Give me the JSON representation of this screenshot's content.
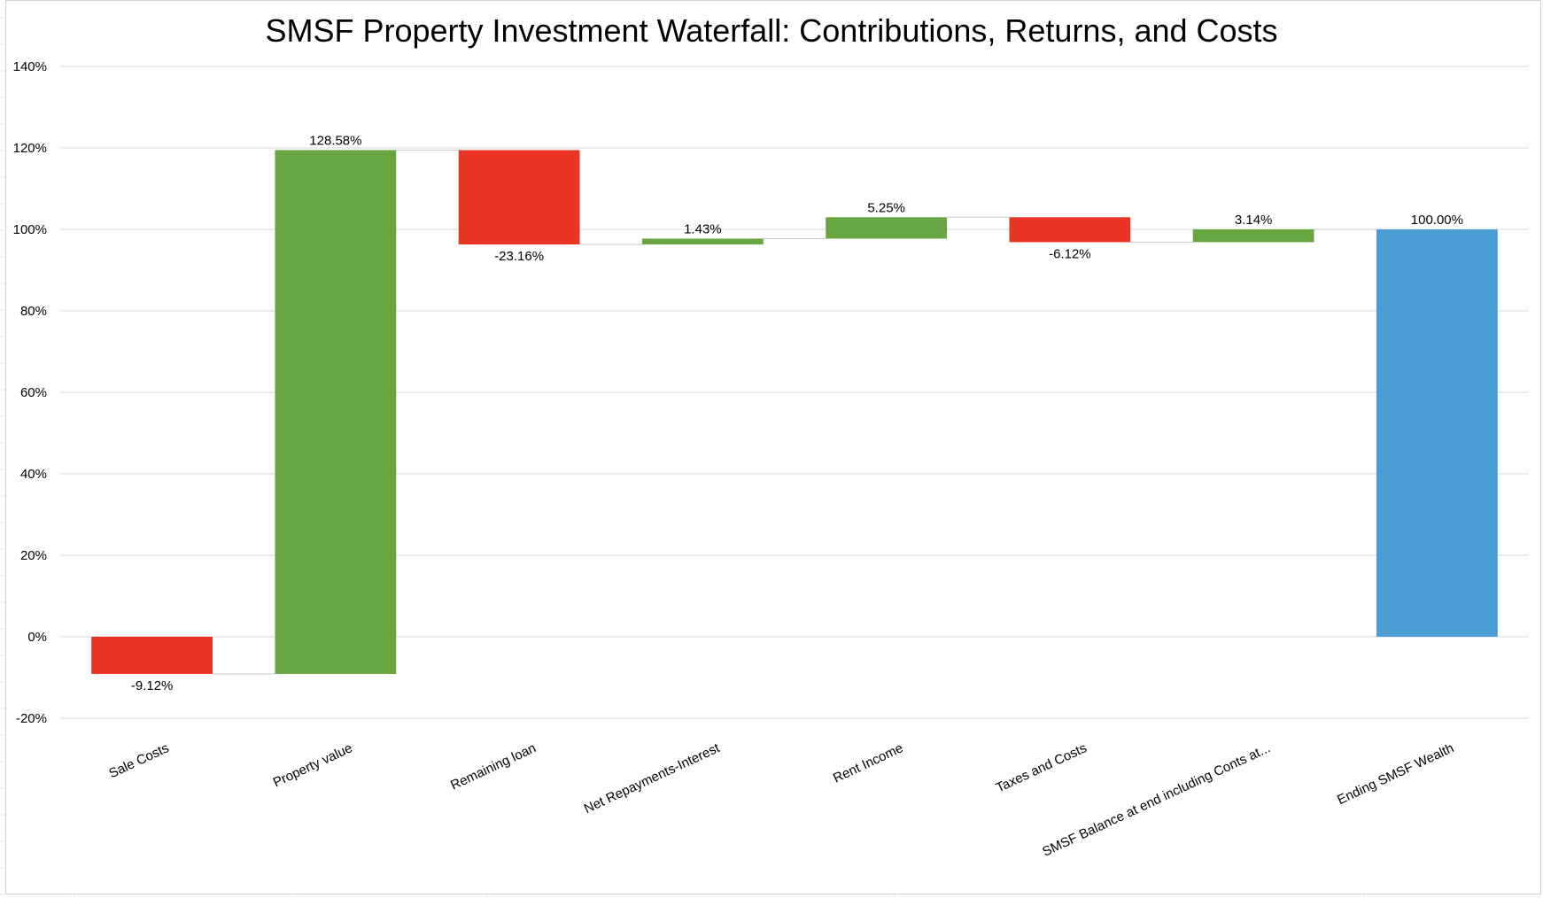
{
  "chart_data": {
    "type": "waterfall",
    "title": "SMSF Property Investment Waterfall: Contributions, Returns, and Costs",
    "xlabel": "",
    "ylabel": "",
    "ylim": [
      -20,
      140
    ],
    "ytick_step": 20,
    "ytick_labels": [
      "-20%",
      "0%",
      "20%",
      "40%",
      "60%",
      "80%",
      "100%",
      "120%",
      "140%"
    ],
    "grid": true,
    "legend": "none",
    "categories": [
      "Sale Costs",
      "Property value",
      "Remaining loan",
      "Net Repayments-Interest",
      "Rent Income",
      "Taxes and Costs",
      "SMSF Balance at end including Conts at...",
      "Ending SMSF Wealth"
    ],
    "values": [
      -9.12,
      128.58,
      -23.16,
      1.43,
      5.25,
      -6.12,
      3.14,
      100.0
    ],
    "value_labels": [
      "-9.12%",
      "128.58%",
      "-23.16%",
      "1.43%",
      "5.25%",
      "-6.12%",
      "3.14%",
      "100.00%"
    ],
    "is_total": [
      false,
      false,
      false,
      false,
      false,
      false,
      false,
      true
    ],
    "colors": {
      "increase": "#67a641",
      "decrease": "#ea3423",
      "total": "#4a9cd3",
      "connector": "#c8c8c8",
      "gridline": "#d9d9d9"
    }
  }
}
